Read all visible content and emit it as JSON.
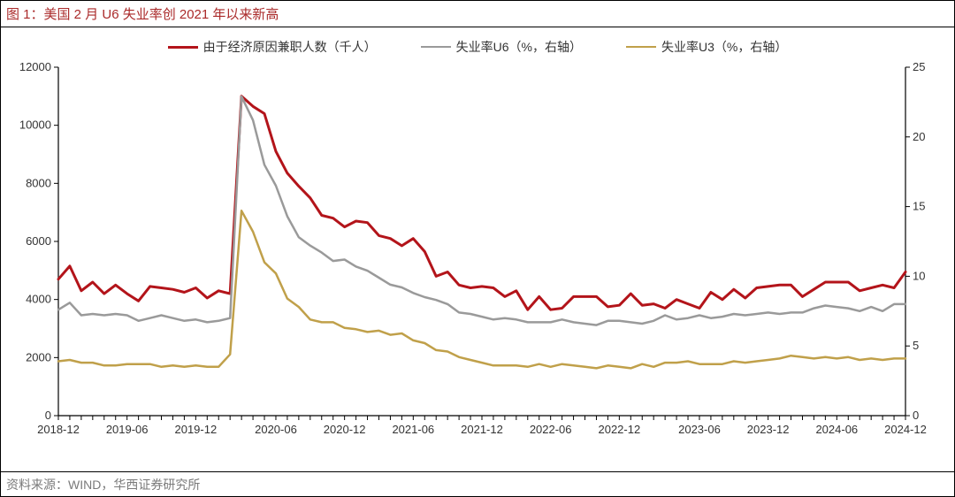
{
  "title": {
    "prefix": "图 1：",
    "text": "美国 2 月 U6 失业率创 2021 年以来新高",
    "color": "#aa2a2a",
    "fontsize": 15
  },
  "source": {
    "text": "资料来源：WIND，华西证券研究所",
    "color": "#7a7a7a",
    "fontsize": 14
  },
  "chart": {
    "type": "line-dual-axis",
    "background_color": "#ffffff",
    "axis_color": "#000000",
    "x": {
      "labels": [
        "2018-12",
        "2019-06",
        "2019-12",
        "2020-06",
        "2020-12",
        "2021-06",
        "2021-12",
        "2022-06",
        "2022-12",
        "2023-06",
        "2023-12",
        "2024-06",
        "2024-12"
      ],
      "n_points": 75,
      "label_fontsize": 13
    },
    "y_left": {
      "min": 0,
      "max": 12000,
      "step": 2000,
      "label_fontsize": 13
    },
    "y_right": {
      "min": 0,
      "max": 25,
      "step": 5,
      "label_fontsize": 13
    },
    "legend_fontsize": 14,
    "series": [
      {
        "name": "由于经济原因兼职人数（千人）",
        "axis": "left",
        "color": "#b3141a",
        "line_width": 3,
        "values": [
          4700,
          5150,
          4300,
          4600,
          4200,
          4500,
          4200,
          3950,
          4450,
          4400,
          4350,
          4250,
          4400,
          4050,
          4300,
          4200,
          11000,
          10650,
          10400,
          9100,
          8350,
          7900,
          7500,
          6900,
          6800,
          6500,
          6700,
          6650,
          6200,
          6100,
          5850,
          6100,
          5650,
          4800,
          4950,
          4500,
          4400,
          4450,
          4400,
          4100,
          4300,
          3650,
          4100,
          3650,
          3700,
          4100,
          4100,
          4100,
          3750,
          3800,
          4200,
          3800,
          3850,
          3700,
          4000,
          3850,
          3700,
          4250,
          4000,
          4350,
          4050,
          4400,
          4450,
          4500,
          4500,
          4100,
          4350,
          4600,
          4600,
          4600,
          4300,
          4400,
          4500,
          4400,
          4950
        ]
      },
      {
        "name": "失业率U6（%，右轴）",
        "axis": "right",
        "color": "#9a9a9a",
        "line_width": 2.5,
        "values": [
          7.6,
          8.1,
          7.2,
          7.3,
          7.2,
          7.3,
          7.2,
          6.8,
          7.0,
          7.2,
          7.0,
          6.8,
          6.9,
          6.7,
          6.8,
          7.0,
          22.9,
          21.2,
          18.0,
          16.5,
          14.3,
          12.8,
          12.2,
          11.7,
          11.1,
          11.2,
          10.7,
          10.4,
          9.9,
          9.4,
          9.2,
          8.8,
          8.5,
          8.3,
          8.0,
          7.4,
          7.3,
          7.1,
          6.9,
          7.0,
          6.9,
          6.7,
          6.7,
          6.7,
          6.9,
          6.7,
          6.6,
          6.5,
          6.8,
          6.8,
          6.7,
          6.6,
          6.8,
          7.2,
          6.9,
          7.0,
          7.2,
          7.0,
          7.1,
          7.3,
          7.2,
          7.3,
          7.4,
          7.3,
          7.4,
          7.4,
          7.7,
          7.9,
          7.8,
          7.7,
          7.5,
          7.8,
          7.5,
          8.0,
          8.0
        ]
      },
      {
        "name": "失业率U3（%，右轴）",
        "axis": "right",
        "color": "#c0a04a",
        "line_width": 2.5,
        "values": [
          3.9,
          4.0,
          3.8,
          3.8,
          3.6,
          3.6,
          3.7,
          3.7,
          3.7,
          3.5,
          3.6,
          3.5,
          3.6,
          3.5,
          3.5,
          4.4,
          14.7,
          13.2,
          11.0,
          10.2,
          8.4,
          7.8,
          6.9,
          6.7,
          6.7,
          6.3,
          6.2,
          6.0,
          6.1,
          5.8,
          5.9,
          5.4,
          5.2,
          4.7,
          4.6,
          4.2,
          4.0,
          3.8,
          3.6,
          3.6,
          3.6,
          3.5,
          3.7,
          3.5,
          3.7,
          3.6,
          3.5,
          3.4,
          3.6,
          3.5,
          3.4,
          3.7,
          3.5,
          3.8,
          3.8,
          3.9,
          3.7,
          3.7,
          3.7,
          3.9,
          3.8,
          3.9,
          4.0,
          4.1,
          4.3,
          4.2,
          4.1,
          4.2,
          4.1,
          4.2,
          4.0,
          4.1,
          4.0,
          4.1,
          4.1
        ]
      }
    ]
  }
}
